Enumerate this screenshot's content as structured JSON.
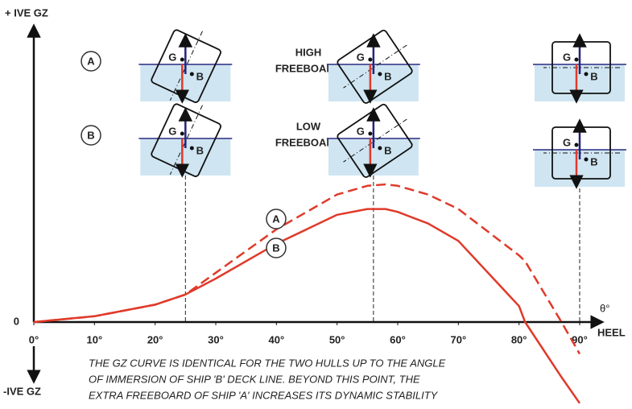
{
  "chart_data": {
    "type": "line",
    "y_label_top": "+ IVE GZ",
    "y_label_bottom": "-IVE GZ",
    "x_symbol": "θ°",
    "x_label": "HEEL",
    "x": [
      0,
      10,
      20,
      25,
      30,
      40,
      50,
      55,
      58,
      60,
      65,
      70,
      80,
      81,
      87,
      90
    ],
    "series": [
      {
        "name": "A",
        "color": "#e03a2a",
        "dashed": true,
        "values": [
          0,
          0.02,
          0.06,
          0.095,
          0.17,
          0.32,
          0.44,
          0.47,
          0.475,
          0.47,
          0.44,
          0.39,
          0.23,
          0.21,
          0,
          -0.11
        ]
      },
      {
        "name": "B",
        "color": "#e03a2a",
        "dashed": false,
        "values": [
          0,
          0.02,
          0.06,
          0.095,
          0.15,
          0.27,
          0.37,
          0.39,
          0.39,
          0.38,
          0.34,
          0.28,
          0.055,
          0,
          -0.19,
          -0.28
        ]
      }
    ],
    "xlim": [
      0,
      90
    ],
    "ylim": [
      -0.3,
      1.0
    ],
    "xticks": [
      {
        "value": 0,
        "label": "0°"
      },
      {
        "value": 10,
        "label": "10°"
      },
      {
        "value": 20,
        "label": "20°"
      },
      {
        "value": 30,
        "label": "30°"
      },
      {
        "value": 40,
        "label": "40°"
      },
      {
        "value": 50,
        "label": "50°"
      },
      {
        "value": 60,
        "label": "60°"
      },
      {
        "value": 70,
        "label": "70°"
      },
      {
        "value": 80,
        "label": "80°"
      },
      {
        "value": 90,
        "label": "90°"
      }
    ],
    "yticks": [
      0
    ],
    "reference_lines": [
      25,
      56,
      90
    ],
    "ship_rows": [
      {
        "label": "A",
        "text": [
          "HIGH",
          "FREEBOARD"
        ]
      },
      {
        "label": "B",
        "text": [
          "LOW",
          "FREEBOARD"
        ]
      }
    ],
    "centre_labels": [
      "G",
      "B"
    ],
    "caption": [
      "THE GZ CURVE IS IDENTICAL FOR THE TWO HULLS UP TO THE ANGLE",
      "OF IMMERSION OF SHIP 'B' DECK LINE. BEYOND THIS POINT, THE",
      "EXTRA FREEBOARD OF SHIP 'A' INCREASES ITS DYNAMIC STABILITY"
    ]
  }
}
